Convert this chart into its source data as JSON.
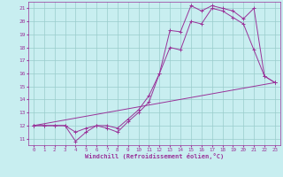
{
  "xlabel": "Windchill (Refroidissement éolien,°C)",
  "background_color": "#c8eef0",
  "line_color": "#993399",
  "grid_color": "#99cccc",
  "xlim": [
    -0.5,
    23.5
  ],
  "ylim": [
    10.5,
    21.5
  ],
  "xticks": [
    0,
    1,
    2,
    3,
    4,
    5,
    6,
    7,
    8,
    9,
    10,
    11,
    12,
    13,
    14,
    15,
    16,
    17,
    18,
    19,
    20,
    21,
    22,
    23
  ],
  "yticks": [
    11,
    12,
    13,
    14,
    15,
    16,
    17,
    18,
    19,
    20,
    21
  ],
  "line1_x": [
    0,
    1,
    2,
    3,
    4,
    5,
    6,
    7,
    8,
    9,
    10,
    11,
    12,
    13,
    14,
    15,
    16,
    17,
    18,
    19,
    20,
    21,
    22,
    23
  ],
  "line1_y": [
    12.0,
    12.0,
    12.0,
    12.0,
    10.8,
    11.5,
    12.0,
    11.8,
    11.5,
    12.3,
    13.0,
    13.8,
    16.0,
    19.3,
    19.2,
    21.2,
    20.8,
    21.2,
    21.0,
    20.8,
    20.2,
    21.0,
    15.8,
    15.3
  ],
  "line2_x": [
    0,
    1,
    2,
    3,
    4,
    5,
    6,
    7,
    8,
    9,
    10,
    11,
    12,
    13,
    14,
    15,
    16,
    17,
    18,
    19,
    20,
    21,
    22,
    23
  ],
  "line2_y": [
    12.0,
    12.0,
    12.0,
    12.0,
    11.5,
    11.8,
    12.0,
    12.0,
    11.8,
    12.5,
    13.2,
    14.3,
    16.0,
    18.0,
    17.8,
    20.0,
    19.8,
    21.0,
    20.8,
    20.3,
    19.8,
    17.8,
    15.8,
    15.3
  ],
  "line3_x": [
    0,
    23
  ],
  "line3_y": [
    12.0,
    15.3
  ]
}
